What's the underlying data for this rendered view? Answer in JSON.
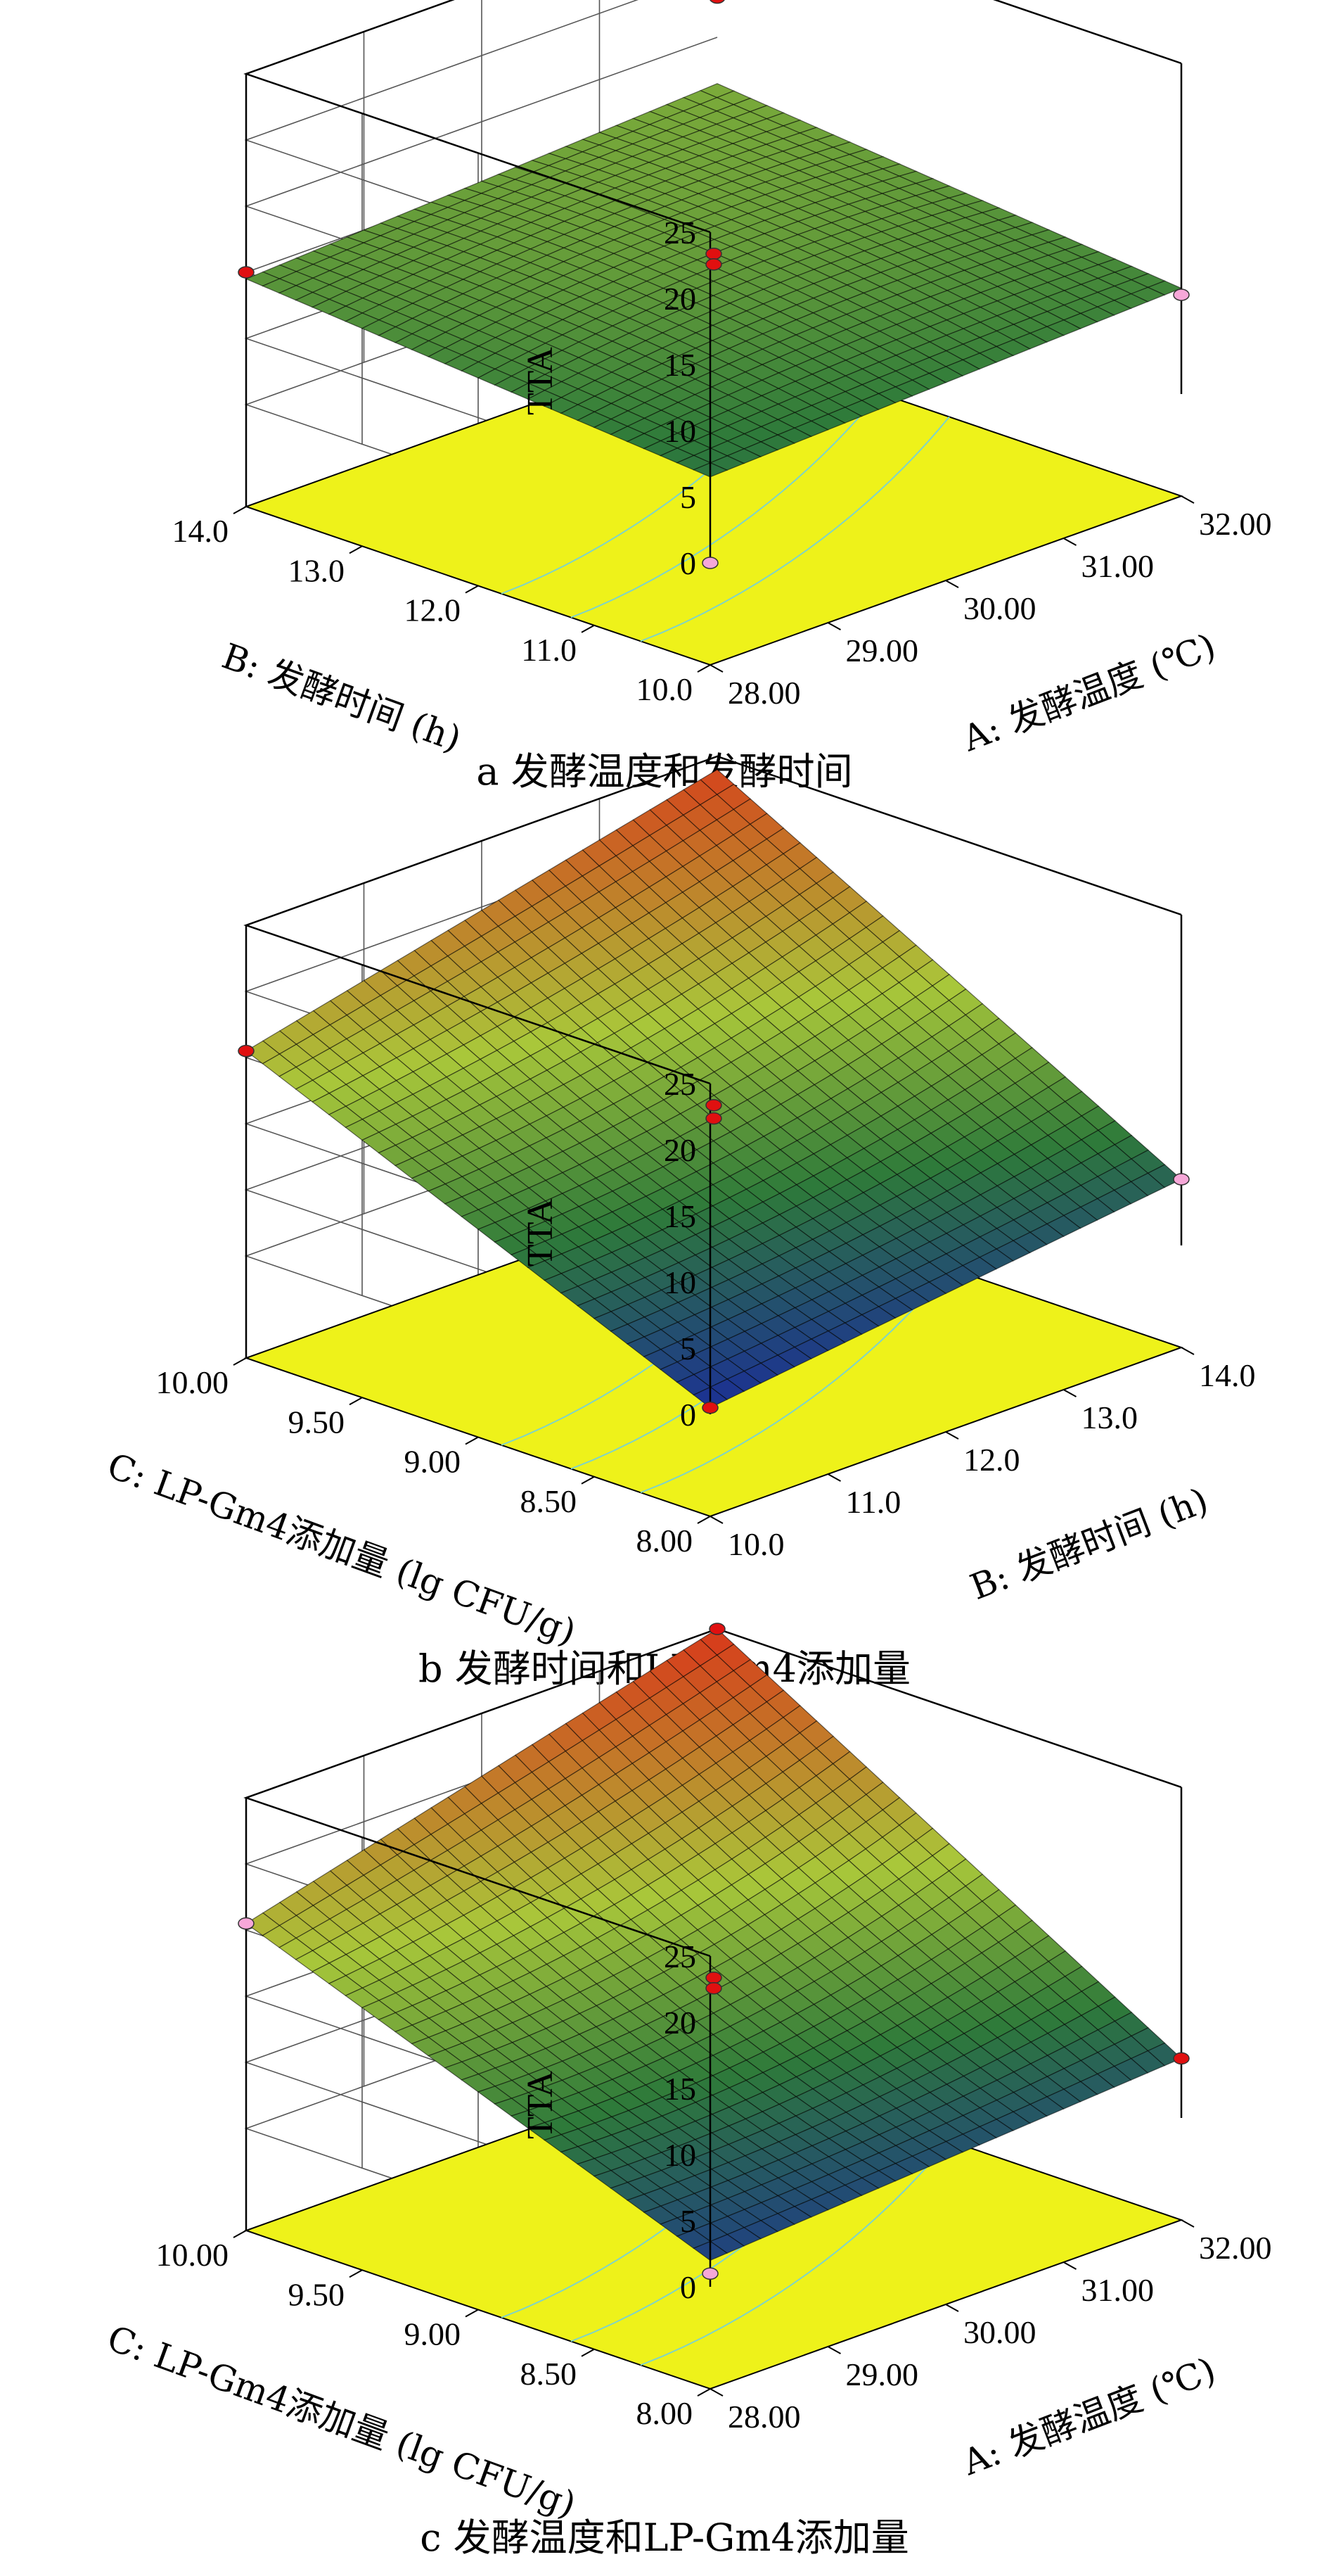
{
  "figure": {
    "colors": {
      "floor": "#eef21a",
      "low": "#1a2a9c",
      "mid": "#2e7a3a",
      "midhigh": "#a9c73a",
      "high": "#d8381a",
      "point_red": "#e01010",
      "point_pink": "#f6a7d8",
      "contour": "#7fd3c8"
    }
  },
  "chart_data": [
    {
      "type": "surface3d",
      "caption": "a 发酵温度和发酵时间",
      "zlabel": "TTA",
      "zlim": [
        0,
        25
      ],
      "z_ticks": [
        "0",
        "5",
        "10",
        "15",
        "20",
        "25"
      ],
      "x_axis": {
        "label": "A: 发酵温度 (℃)",
        "ticks": [
          "28.00",
          "29.00",
          "30.00",
          "31.00",
          "32.00"
        ],
        "range": [
          28,
          32
        ]
      },
      "y_axis": {
        "label": "B: 发酵时间 (h)",
        "ticks": [
          "10.0",
          "11.0",
          "12.0",
          "13.0",
          "14.0"
        ],
        "range": [
          10,
          14
        ]
      },
      "corners": {
        "x_min_y_min": 6.5,
        "x_max_y_min": 8.0,
        "x_min_y_max": 9.5,
        "x_max_y_max": 11.5
      },
      "center": 10.0,
      "points": [
        {
          "x": 28,
          "y": 14,
          "z": 10.0,
          "color": "red"
        },
        {
          "x": 32,
          "y": 14,
          "z": 18.0,
          "color": "red"
        },
        {
          "x": 32,
          "y": 10,
          "z": 7.5,
          "color": "pink"
        },
        {
          "x": 28,
          "y": 10,
          "z": 0,
          "color": "pink"
        },
        {
          "x": 30,
          "y": 12,
          "z": 11.0,
          "color": "red"
        },
        {
          "x": 30,
          "y": 12,
          "z": 10.2,
          "color": "red"
        }
      ]
    },
    {
      "type": "surface3d",
      "caption": "b 发酵时间和LP-Gm4添加量",
      "zlabel": "TTA",
      "zlim": [
        0,
        25
      ],
      "z_ticks": [
        "0",
        "5",
        "10",
        "15",
        "20",
        "25"
      ],
      "x_axis": {
        "label": "B: 发酵时间 (h)",
        "ticks": [
          "10.0",
          "11.0",
          "12.0",
          "13.0",
          "14.0"
        ],
        "range": [
          10,
          14
        ]
      },
      "y_axis": {
        "label": "C: LP-Gm4添加量 (lg CFU/g)",
        "ticks": [
          "8.00",
          "8.50",
          "9.00",
          "9.50",
          "10.00"
        ],
        "range": [
          8,
          10
        ]
      },
      "corners": {
        "x_min_y_min": 0.5,
        "x_max_y_min": 5.0,
        "x_min_y_max": 15.5,
        "x_max_y_max": 24.0
      },
      "center": 10.0,
      "points": [
        {
          "x": 10,
          "y": 10,
          "z": 15.5,
          "color": "red"
        },
        {
          "x": 14,
          "y": 8,
          "z": 5.0,
          "color": "pink"
        },
        {
          "x": 10,
          "y": 8,
          "z": 0.5,
          "color": "red"
        },
        {
          "x": 12,
          "y": 9,
          "z": 11.0,
          "color": "red"
        },
        {
          "x": 12,
          "y": 9,
          "z": 10.0,
          "color": "red"
        }
      ]
    },
    {
      "type": "surface3d",
      "caption": "c 发酵温度和LP-Gm4添加量",
      "zlabel": "TTA",
      "zlim": [
        0,
        25
      ],
      "z_ticks": [
        "0",
        "5",
        "10",
        "15",
        "20",
        "25"
      ],
      "x_axis": {
        "label": "A: 发酵温度 (℃)",
        "ticks": [
          "28.00",
          "29.00",
          "30.00",
          "31.00",
          "32.00"
        ],
        "range": [
          28,
          32
        ]
      },
      "y_axis": {
        "label": "C: LP-Gm4添加量 (lg CFU/g)",
        "ticks": [
          "8.00",
          "8.50",
          "9.00",
          "9.50",
          "10.00"
        ],
        "range": [
          8,
          10
        ]
      },
      "corners": {
        "x_min_y_min": 2.0,
        "x_max_y_min": 4.5,
        "x_min_y_max": 15.5,
        "x_max_y_max": 25.0
      },
      "center": 10.0,
      "points": [
        {
          "x": 28,
          "y": 10,
          "z": 15.5,
          "color": "pink"
        },
        {
          "x": 32,
          "y": 10,
          "z": 25.0,
          "color": "red"
        },
        {
          "x": 32,
          "y": 8,
          "z": 4.5,
          "color": "red"
        },
        {
          "x": 28,
          "y": 8,
          "z": 1.0,
          "color": "pink"
        },
        {
          "x": 30,
          "y": 9,
          "z": 11.0,
          "color": "red"
        },
        {
          "x": 30,
          "y": 9,
          "z": 10.2,
          "color": "red"
        }
      ]
    }
  ]
}
